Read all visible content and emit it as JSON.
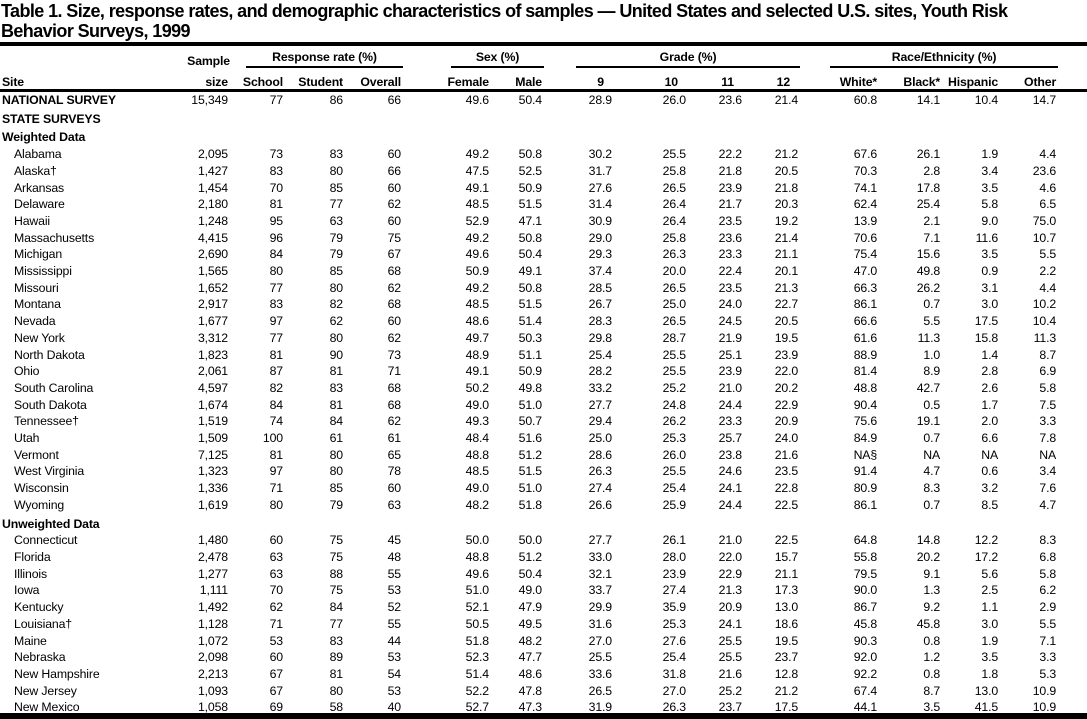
{
  "title_line1": "Table 1. Size, response rates, and demographic characteristics of samples — United States and selected U.S. sites, Youth Risk",
  "title_line2": "Behavior Surveys, 1999",
  "colors": {
    "text": "#000000",
    "background": "#ffffff",
    "rule": "#000000"
  },
  "header": {
    "site": "Site",
    "sample_line1": "Sample",
    "sample_line2": "size",
    "groups": [
      {
        "label": "Response rate (%)",
        "cols": [
          "School",
          "Student",
          "Overall"
        ]
      },
      {
        "label": "Sex (%)",
        "cols": [
          "Female",
          "Male"
        ]
      },
      {
        "label": "Grade (%)",
        "cols": [
          "9",
          "10",
          "11",
          "12"
        ]
      },
      {
        "label": "Race/Ethnicity (%)",
        "cols": [
          "White*",
          "Black*",
          "Hispanic",
          "Other"
        ]
      }
    ]
  },
  "rows": [
    {
      "label": "NATIONAL SURVEY",
      "bold": true,
      "indent": false,
      "values": [
        "15,349",
        "77",
        "86",
        "66",
        "49.6",
        "50.4",
        "28.9",
        "26.0",
        "23.6",
        "21.4",
        "60.8",
        "14.1",
        "10.4",
        "14.7"
      ]
    },
    {
      "label": "STATE SURVEYS",
      "section": true
    },
    {
      "label": "Weighted Data",
      "section": true
    },
    {
      "label": "Alabama",
      "indent": true,
      "values": [
        "2,095",
        "73",
        "83",
        "60",
        "49.2",
        "50.8",
        "30.2",
        "25.5",
        "22.2",
        "21.2",
        "67.6",
        "26.1",
        "1.9",
        "4.4"
      ]
    },
    {
      "label": "Alaska†",
      "indent": true,
      "values": [
        "1,427",
        "83",
        "80",
        "66",
        "47.5",
        "52.5",
        "31.7",
        "25.8",
        "21.8",
        "20.5",
        "70.3",
        "2.8",
        "3.4",
        "23.6"
      ]
    },
    {
      "label": "Arkansas",
      "indent": true,
      "values": [
        "1,454",
        "70",
        "85",
        "60",
        "49.1",
        "50.9",
        "27.6",
        "26.5",
        "23.9",
        "21.8",
        "74.1",
        "17.8",
        "3.5",
        "4.6"
      ]
    },
    {
      "label": "Delaware",
      "indent": true,
      "values": [
        "2,180",
        "81",
        "77",
        "62",
        "48.5",
        "51.5",
        "31.4",
        "26.4",
        "21.7",
        "20.3",
        "62.4",
        "25.4",
        "5.8",
        "6.5"
      ]
    },
    {
      "label": "Hawaii",
      "indent": true,
      "values": [
        "1,248",
        "95",
        "63",
        "60",
        "52.9",
        "47.1",
        "30.9",
        "26.4",
        "23.5",
        "19.2",
        "13.9",
        "2.1",
        "9.0",
        "75.0"
      ]
    },
    {
      "label": "Massachusetts",
      "indent": true,
      "values": [
        "4,415",
        "96",
        "79",
        "75",
        "49.2",
        "50.8",
        "29.0",
        "25.8",
        "23.6",
        "21.4",
        "70.6",
        "7.1",
        "11.6",
        "10.7"
      ]
    },
    {
      "label": "Michigan",
      "indent": true,
      "values": [
        "2,690",
        "84",
        "79",
        "67",
        "49.6",
        "50.4",
        "29.3",
        "26.3",
        "23.3",
        "21.1",
        "75.4",
        "15.6",
        "3.5",
        "5.5"
      ]
    },
    {
      "label": "Mississippi",
      "indent": true,
      "values": [
        "1,565",
        "80",
        "85",
        "68",
        "50.9",
        "49.1",
        "37.4",
        "20.0",
        "22.4",
        "20.1",
        "47.0",
        "49.8",
        "0.9",
        "2.2"
      ]
    },
    {
      "label": "Missouri",
      "indent": true,
      "values": [
        "1,652",
        "77",
        "80",
        "62",
        "49.2",
        "50.8",
        "28.5",
        "26.5",
        "23.5",
        "21.3",
        "66.3",
        "26.2",
        "3.1",
        "4.4"
      ]
    },
    {
      "label": "Montana",
      "indent": true,
      "values": [
        "2,917",
        "83",
        "82",
        "68",
        "48.5",
        "51.5",
        "26.7",
        "25.0",
        "24.0",
        "22.7",
        "86.1",
        "0.7",
        "3.0",
        "10.2"
      ]
    },
    {
      "label": "Nevada",
      "indent": true,
      "values": [
        "1,677",
        "97",
        "62",
        "60",
        "48.6",
        "51.4",
        "28.3",
        "26.5",
        "24.5",
        "20.5",
        "66.6",
        "5.5",
        "17.5",
        "10.4"
      ]
    },
    {
      "label": "New York",
      "indent": true,
      "values": [
        "3,312",
        "77",
        "80",
        "62",
        "49.7",
        "50.3",
        "29.8",
        "28.7",
        "21.9",
        "19.5",
        "61.6",
        "11.3",
        "15.8",
        "11.3"
      ]
    },
    {
      "label": "North Dakota",
      "indent": true,
      "values": [
        "1,823",
        "81",
        "90",
        "73",
        "48.9",
        "51.1",
        "25.4",
        "25.5",
        "25.1",
        "23.9",
        "88.9",
        "1.0",
        "1.4",
        "8.7"
      ]
    },
    {
      "label": "Ohio",
      "indent": true,
      "values": [
        "2,061",
        "87",
        "81",
        "71",
        "49.1",
        "50.9",
        "28.2",
        "25.5",
        "23.9",
        "22.0",
        "81.4",
        "8.9",
        "2.8",
        "6.9"
      ]
    },
    {
      "label": "South Carolina",
      "indent": true,
      "values": [
        "4,597",
        "82",
        "83",
        "68",
        "50.2",
        "49.8",
        "33.2",
        "25.2",
        "21.0",
        "20.2",
        "48.8",
        "42.7",
        "2.6",
        "5.8"
      ]
    },
    {
      "label": "South Dakota",
      "indent": true,
      "values": [
        "1,674",
        "84",
        "81",
        "68",
        "49.0",
        "51.0",
        "27.7",
        "24.8",
        "24.4",
        "22.9",
        "90.4",
        "0.5",
        "1.7",
        "7.5"
      ]
    },
    {
      "label": "Tennessee†",
      "indent": true,
      "values": [
        "1,519",
        "74",
        "84",
        "62",
        "49.3",
        "50.7",
        "29.4",
        "26.2",
        "23.3",
        "20.9",
        "75.6",
        "19.1",
        "2.0",
        "3.3"
      ]
    },
    {
      "label": "Utah",
      "indent": true,
      "values": [
        "1,509",
        "100",
        "61",
        "61",
        "48.4",
        "51.6",
        "25.0",
        "25.3",
        "25.7",
        "24.0",
        "84.9",
        "0.7",
        "6.6",
        "7.8"
      ]
    },
    {
      "label": "Vermont",
      "indent": true,
      "values": [
        "7,125",
        "81",
        "80",
        "65",
        "48.8",
        "51.2",
        "28.6",
        "26.0",
        "23.8",
        "21.6",
        "NA§",
        "NA",
        "NA",
        "NA"
      ]
    },
    {
      "label": "West Virginia",
      "indent": true,
      "values": [
        "1,323",
        "97",
        "80",
        "78",
        "48.5",
        "51.5",
        "26.3",
        "25.5",
        "24.6",
        "23.5",
        "91.4",
        "4.7",
        "0.6",
        "3.4"
      ]
    },
    {
      "label": "Wisconsin",
      "indent": true,
      "values": [
        "1,336",
        "71",
        "85",
        "60",
        "49.0",
        "51.0",
        "27.4",
        "25.4",
        "24.1",
        "22.8",
        "80.9",
        "8.3",
        "3.2",
        "7.6"
      ]
    },
    {
      "label": "Wyoming",
      "indent": true,
      "values": [
        "1,619",
        "80",
        "79",
        "63",
        "48.2",
        "51.8",
        "26.6",
        "25.9",
        "24.4",
        "22.5",
        "86.1",
        "0.7",
        "8.5",
        "4.7"
      ]
    },
    {
      "label": "Unweighted Data",
      "section": true
    },
    {
      "label": "Connecticut",
      "indent": true,
      "values": [
        "1,480",
        "60",
        "75",
        "45",
        "50.0",
        "50.0",
        "27.7",
        "26.1",
        "21.0",
        "22.5",
        "64.8",
        "14.8",
        "12.2",
        "8.3"
      ]
    },
    {
      "label": "Florida",
      "indent": true,
      "values": [
        "2,478",
        "63",
        "75",
        "48",
        "48.8",
        "51.2",
        "33.0",
        "28.0",
        "22.0",
        "15.7",
        "55.8",
        "20.2",
        "17.2",
        "6.8"
      ]
    },
    {
      "label": "Illinois",
      "indent": true,
      "values": [
        "1,277",
        "63",
        "88",
        "55",
        "49.6",
        "50.4",
        "32.1",
        "23.9",
        "22.9",
        "21.1",
        "79.5",
        "9.1",
        "5.6",
        "5.8"
      ]
    },
    {
      "label": "Iowa",
      "indent": true,
      "values": [
        "1,111",
        "70",
        "75",
        "53",
        "51.0",
        "49.0",
        "33.7",
        "27.4",
        "21.3",
        "17.3",
        "90.0",
        "1.3",
        "2.5",
        "6.2"
      ]
    },
    {
      "label": "Kentucky",
      "indent": true,
      "values": [
        "1,492",
        "62",
        "84",
        "52",
        "52.1",
        "47.9",
        "29.9",
        "35.9",
        "20.9",
        "13.0",
        "86.7",
        "9.2",
        "1.1",
        "2.9"
      ]
    },
    {
      "label": "Louisiana†",
      "indent": true,
      "values": [
        "1,128",
        "71",
        "77",
        "55",
        "50.5",
        "49.5",
        "31.6",
        "25.3",
        "24.1",
        "18.6",
        "45.8",
        "45.8",
        "3.0",
        "5.5"
      ]
    },
    {
      "label": "Maine",
      "indent": true,
      "values": [
        "1,072",
        "53",
        "83",
        "44",
        "51.8",
        "48.2",
        "27.0",
        "27.6",
        "25.5",
        "19.5",
        "90.3",
        "0.8",
        "1.9",
        "7.1"
      ]
    },
    {
      "label": "Nebraska",
      "indent": true,
      "values": [
        "2,098",
        "60",
        "89",
        "53",
        "52.3",
        "47.7",
        "25.5",
        "25.4",
        "25.5",
        "23.7",
        "92.0",
        "1.2",
        "3.5",
        "3.3"
      ]
    },
    {
      "label": "New Hampshire",
      "indent": true,
      "values": [
        "2,213",
        "67",
        "81",
        "54",
        "51.4",
        "48.6",
        "33.6",
        "31.8",
        "21.6",
        "12.8",
        "92.2",
        "0.8",
        "1.8",
        "5.3"
      ]
    },
    {
      "label": "New Jersey",
      "indent": true,
      "values": [
        "1,093",
        "67",
        "80",
        "53",
        "52.2",
        "47.8",
        "26.5",
        "27.0",
        "25.2",
        "21.2",
        "67.4",
        "8.7",
        "13.0",
        "10.9"
      ]
    },
    {
      "label": "New Mexico",
      "indent": true,
      "values": [
        "1,058",
        "69",
        "58",
        "40",
        "52.7",
        "47.3",
        "31.9",
        "26.3",
        "23.7",
        "17.5",
        "44.1",
        "3.5",
        "41.5",
        "10.9"
      ]
    }
  ]
}
